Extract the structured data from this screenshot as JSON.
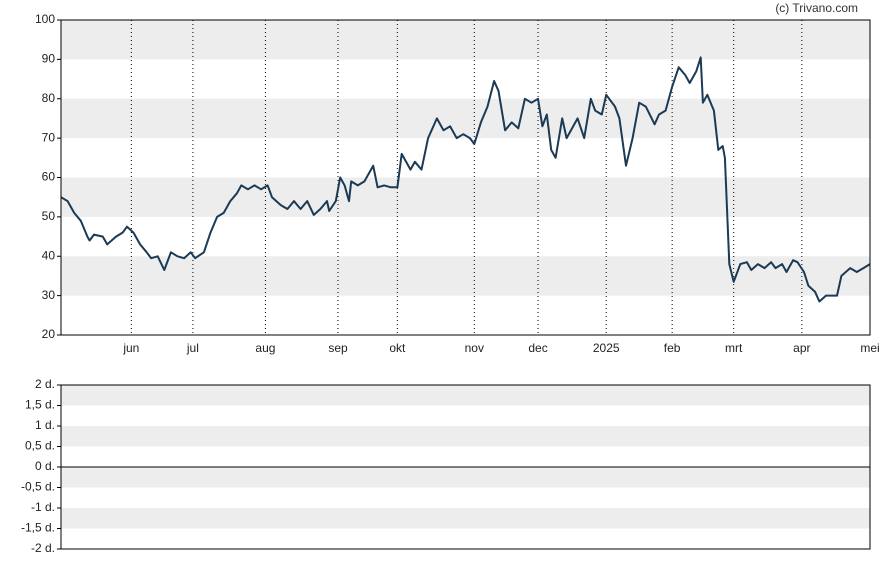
{
  "chart_data": [
    {
      "type": "line",
      "credit": "(c) Trivano.com",
      "xlim": [
        0,
        368
      ],
      "xticks": [
        {
          "value": 32,
          "label": "jun"
        },
        {
          "value": 60,
          "label": "jul"
        },
        {
          "value": 93,
          "label": "aug"
        },
        {
          "value": 126,
          "label": "sep"
        },
        {
          "value": 153,
          "label": "okt"
        },
        {
          "value": 188,
          "label": "nov"
        },
        {
          "value": 217,
          "label": "dec"
        },
        {
          "value": 248,
          "label": "2025"
        },
        {
          "value": 278,
          "label": "feb"
        },
        {
          "value": 306,
          "label": "mrt"
        },
        {
          "value": 337,
          "label": "apr"
        },
        {
          "value": 368,
          "label": "mei"
        }
      ],
      "ylim": [
        20,
        100
      ],
      "yticks": [
        20,
        30,
        40,
        50,
        60,
        70,
        80,
        90,
        100
      ],
      "grid": true,
      "x": [
        0,
        3,
        6,
        9,
        12,
        13,
        15,
        19,
        21,
        25,
        28,
        30,
        33,
        36,
        39,
        41,
        44,
        47,
        50,
        53,
        56,
        59,
        61,
        65,
        68,
        71,
        74,
        77,
        80,
        82,
        85,
        88,
        91,
        94,
        96,
        100,
        103,
        106,
        109,
        112,
        115,
        118,
        121,
        122,
        125,
        127,
        129,
        131,
        132,
        135,
        138,
        142,
        144,
        147,
        150,
        153,
        155,
        159,
        161,
        164,
        167,
        171,
        174,
        177,
        180,
        183,
        186,
        188,
        191,
        194,
        197,
        199,
        202,
        205,
        208,
        211,
        214,
        217,
        219,
        221,
        223,
        225,
        228,
        230,
        233,
        235,
        238,
        241,
        243,
        246,
        248,
        252,
        254,
        257,
        260,
        263,
        266,
        270,
        272,
        275,
        278,
        281,
        284,
        286,
        289,
        291,
        292,
        294,
        297,
        299,
        301,
        302,
        304,
        306,
        309,
        312,
        314,
        317,
        320,
        323,
        325,
        328,
        330,
        333,
        335,
        338,
        340,
        343,
        345,
        348,
        353,
        355,
        359,
        362,
        365,
        368
      ],
      "series": [
        {
          "color": "#1b3a55",
          "values": [
            55,
            54,
            51,
            49,
            45,
            44,
            45.5,
            45,
            43,
            45,
            46,
            47.5,
            46,
            43,
            41,
            39.5,
            40,
            36.5,
            41,
            40,
            39.5,
            41,
            39.5,
            41,
            46,
            50,
            51,
            54,
            56,
            58,
            57,
            58,
            57,
            58,
            55,
            53,
            52,
            54,
            52,
            54,
            50.5,
            52,
            54,
            51.5,
            54,
            60,
            58,
            54,
            59,
            58,
            59,
            63,
            57.5,
            58,
            57.5,
            57.5,
            66,
            62,
            64,
            62,
            70,
            75,
            72,
            73,
            70,
            71,
            70,
            68.5,
            74,
            78,
            84.5,
            82,
            72,
            74,
            72.5,
            80,
            79,
            80,
            73,
            76,
            67,
            65,
            75,
            70,
            73,
            75,
            70,
            80,
            77,
            76,
            81,
            78,
            75,
            63,
            70,
            79,
            78,
            73.5,
            76,
            77,
            83,
            88,
            86,
            84,
            87,
            90.5,
            79,
            81,
            77,
            67,
            68,
            65,
            38,
            33.5,
            38,
            38.5,
            36.5,
            38,
            37,
            38.5,
            37,
            38,
            36,
            39,
            38.5,
            36,
            32.5,
            31,
            28.5,
            30,
            30,
            35,
            37,
            36,
            37,
            38
          ]
        }
      ]
    },
    {
      "type": "bar",
      "ylim": [
        -2,
        2
      ],
      "grid": true,
      "yticks": [
        {
          "value": 2,
          "label": "2 d."
        },
        {
          "value": 1.5,
          "label": "1,5 d."
        },
        {
          "value": 1,
          "label": "1 d."
        },
        {
          "value": 0.5,
          "label": "0,5 d."
        },
        {
          "value": 0,
          "label": "0 d."
        },
        {
          "value": -0.5,
          "label": "-0,5 d."
        },
        {
          "value": -1,
          "label": "-1 d."
        },
        {
          "value": -1.5,
          "label": "-1,5 d."
        },
        {
          "value": -2,
          "label": "-2 d."
        }
      ]
    }
  ]
}
